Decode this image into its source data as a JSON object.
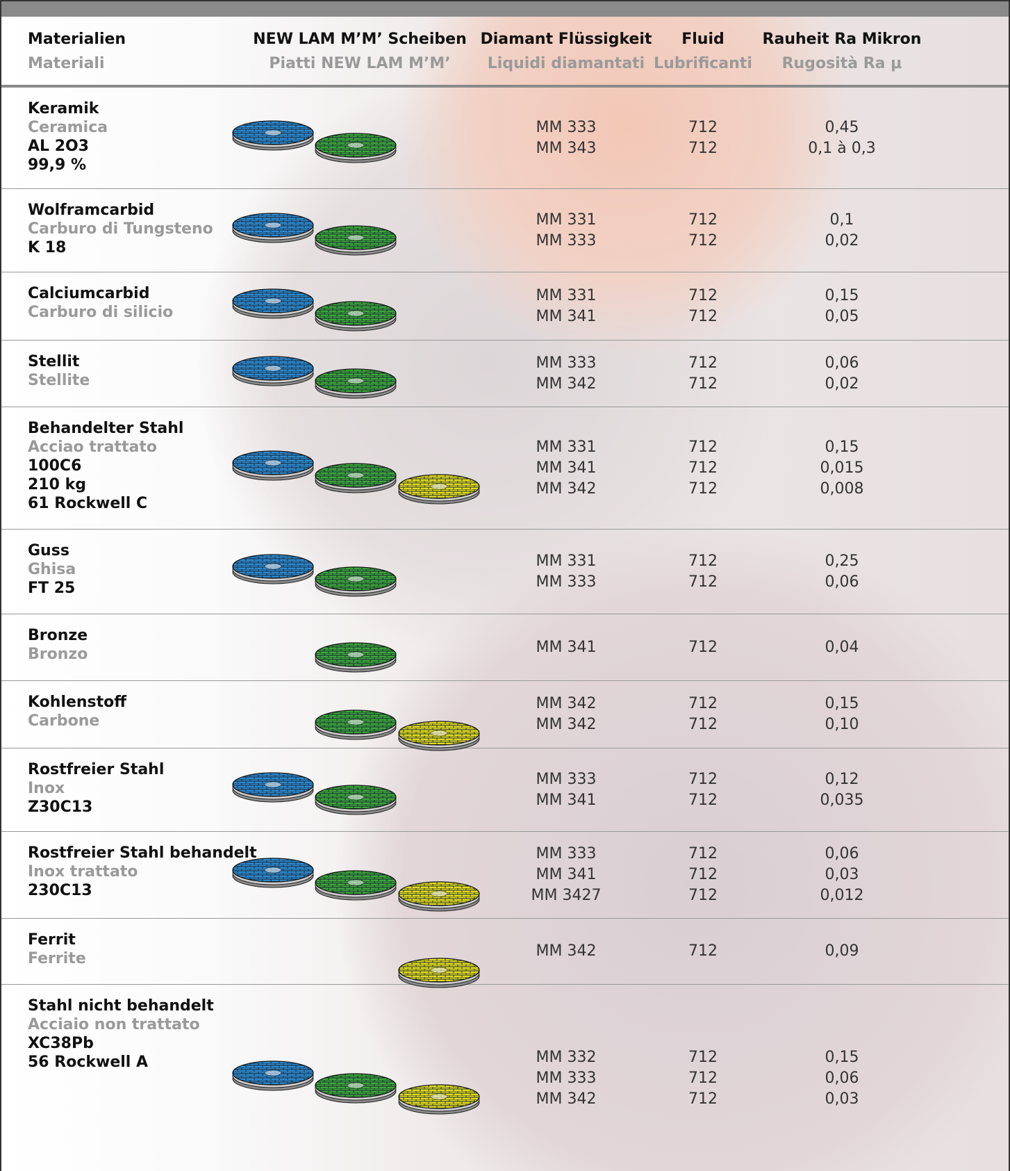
{
  "header": [
    {
      "de": "Materialien",
      "it": "Materiali"
    },
    {
      "de": "NEW LAM M’M’ Scheiben",
      "it": "Piatti NEW LAM M’M’"
    },
    {
      "de": "Diamant Flüssigkeit",
      "it": "Liquidi diamantati"
    },
    {
      "de": "Fluid",
      "it": "Lubrificanti"
    },
    {
      "de": "Rauheit Ra Mikron",
      "it": "Rugosità Ra μ"
    }
  ],
  "disc_colors": [
    "#2e8bd0",
    "#3fa83a",
    "#e6de1a"
  ],
  "rows": [
    {
      "material": [
        "Keramik",
        "Ceramica",
        "AL 2O3",
        "99,9 %"
      ],
      "discs": [
        true,
        true,
        false
      ],
      "liquids": [
        "MM 333",
        "MM 343"
      ],
      "fluids": [
        "712",
        "712"
      ],
      "roughness": [
        "0,45",
        "0,1 à 0,3"
      ]
    },
    {
      "material": [
        "Wolframcarbid",
        "Carburo di Tungsteno",
        "K 18"
      ],
      "discs": [
        true,
        true,
        false
      ],
      "liquids": [
        "MM 331",
        "MM 333"
      ],
      "fluids": [
        "712",
        "712"
      ],
      "roughness": [
        "0,1",
        "0,02"
      ]
    },
    {
      "material": [
        "Calciumcarbid",
        "Carburo di silicio"
      ],
      "discs": [
        true,
        true,
        false
      ],
      "liquids": [
        "MM 331",
        "MM 341"
      ],
      "fluids": [
        "712",
        "712"
      ],
      "roughness": [
        "0,15",
        "0,05"
      ]
    },
    {
      "material": [
        "Stellit",
        "Stellite"
      ],
      "discs": [
        true,
        true,
        false
      ],
      "liquids": [
        "MM 333",
        "MM 342"
      ],
      "fluids": [
        "712",
        "712"
      ],
      "roughness": [
        "0,06",
        "0,02"
      ]
    },
    {
      "material": [
        "Behandelter Stahl",
        "Acciao trattato",
        "100C6",
        "210 kg",
        "61 Rockwell C"
      ],
      "discs": [
        true,
        true,
        true
      ],
      "liquids": [
        "MM 331",
        "MM 341",
        "MM 342"
      ],
      "fluids": [
        "712",
        "712",
        "712"
      ],
      "roughness": [
        "0,15",
        "0,015",
        "0,008"
      ]
    },
    {
      "material": [
        "Guss",
        "Ghisa",
        "FT 25"
      ],
      "discs": [
        true,
        true,
        false
      ],
      "liquids": [
        "MM 331",
        "MM 333"
      ],
      "fluids": [
        "712",
        "712"
      ],
      "roughness": [
        "0,25",
        "0,06"
      ]
    },
    {
      "material": [
        "Bronze",
        "Bronzo"
      ],
      "discs": [
        false,
        true,
        false
      ],
      "liquids": [
        "MM 341"
      ],
      "fluids": [
        "712"
      ],
      "roughness": [
        "0,04"
      ]
    },
    {
      "material": [
        "Kohlenstoff",
        "Carbone"
      ],
      "discs": [
        false,
        true,
        true
      ],
      "liquids": [
        "MM 342",
        "MM 342"
      ],
      "fluids": [
        "712",
        "712"
      ],
      "roughness": [
        "0,15",
        "0,10"
      ]
    },
    {
      "material": [
        "Rostfreier Stahl",
        "Inox",
        "Z30C13"
      ],
      "discs": [
        true,
        true,
        false
      ],
      "liquids": [
        "MM 333",
        "MM 341"
      ],
      "fluids": [
        "712",
        "712"
      ],
      "roughness": [
        "0,12",
        "0,035"
      ]
    },
    {
      "material": [
        "Rostfreier Stahl behandelt",
        "Inox trattato",
        "230C13"
      ],
      "discs": [
        true,
        true,
        true
      ],
      "liquids": [
        "MM 333",
        "MM 341",
        "MM 3427"
      ],
      "fluids": [
        "712",
        "712",
        "712"
      ],
      "roughness": [
        "0,06",
        "0,03",
        "0,012"
      ]
    },
    {
      "material": [
        "Ferrit",
        "Ferrite"
      ],
      "discs": [
        false,
        false,
        true
      ],
      "liquids": [
        "MM 342"
      ],
      "fluids": [
        "712"
      ],
      "roughness": [
        "0,09"
      ]
    },
    {
      "material": [
        "Stahl nicht behandelt",
        "Acciaio non trattato",
        "XC38Pb",
        "56 Rockwell A"
      ],
      "discs": [
        true,
        true,
        true
      ],
      "liquids": [
        "MM 332",
        "MM 333",
        "MM 342"
      ],
      "fluids": [
        "712",
        "712",
        "712"
      ],
      "roughness": [
        "0,15",
        "0,06",
        "0,03"
      ]
    }
  ]
}
